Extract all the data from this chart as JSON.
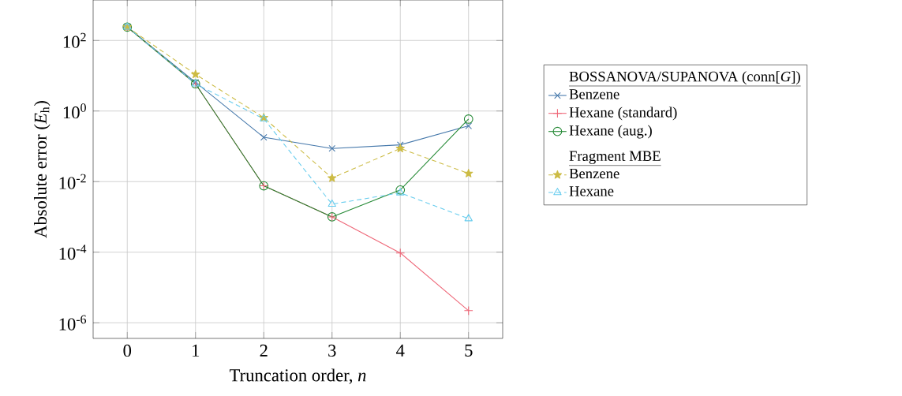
{
  "chart_data": {
    "type": "line",
    "xlabel": "Truncation order, *n*",
    "ylabel": "Absolute error (*E*$_{h}$)",
    "legend_title": "BOSSANOVA/SUPANOVA (conn[*G*])",
    "annotations": [
      "Fragment MBE"
    ],
    "x": [
      0,
      1,
      2,
      3,
      4,
      5
    ],
    "series": [
      {
        "name": "Benzene",
        "color": "#4477aa",
        "marker": "x",
        "line_style": "solid",
        "values": [
          240,
          6.5,
          0.18,
          0.087,
          0.11,
          0.38
        ]
      },
      {
        "name": "Hexane (standard)",
        "color": "#ee6677",
        "marker": "cross",
        "line_style": "solid",
        "values": [
          240,
          5.9,
          0.0076,
          0.001,
          9.5e-05,
          2.2e-06
        ]
      },
      {
        "name": "Hexane (aug.)",
        "color": "#228833",
        "marker": "circle",
        "line_style": "solid",
        "values": [
          240,
          5.9,
          0.0076,
          0.001,
          0.0058,
          0.59
        ]
      },
      {
        "name": "Benzene",
        "color": "#ccbb44",
        "marker": "star",
        "line_style": "dashed",
        "values": [
          240,
          11,
          0.65,
          0.0126,
          0.087,
          0.017
        ]
      },
      {
        "name": "Hexane",
        "color": "#66ccee",
        "marker": "triangle",
        "line_style": "dashed",
        "values": [
          240,
          5.9,
          0.6,
          0.0023,
          0.0048,
          0.00089
        ]
      }
    ],
    "xlim": [
      -0.5,
      5.5
    ],
    "ylim": [
      3.6e-07,
      1400.0
    ],
    "xticks": [
      0,
      1,
      2,
      3,
      4,
      5
    ],
    "yticks": [
      {
        "value": 1e-06,
        "label": "10$^{-6}$"
      },
      {
        "value": 0.0001,
        "label": "10$^{-4}$"
      },
      {
        "value": 0.01,
        "label": "10$^{-2}$"
      },
      {
        "value": 1,
        "label": "10$^{0}$"
      },
      {
        "value": 100,
        "label": "10$^{2}$"
      }
    ],
    "log": "y",
    "grid": true,
    "legend": "right"
  }
}
